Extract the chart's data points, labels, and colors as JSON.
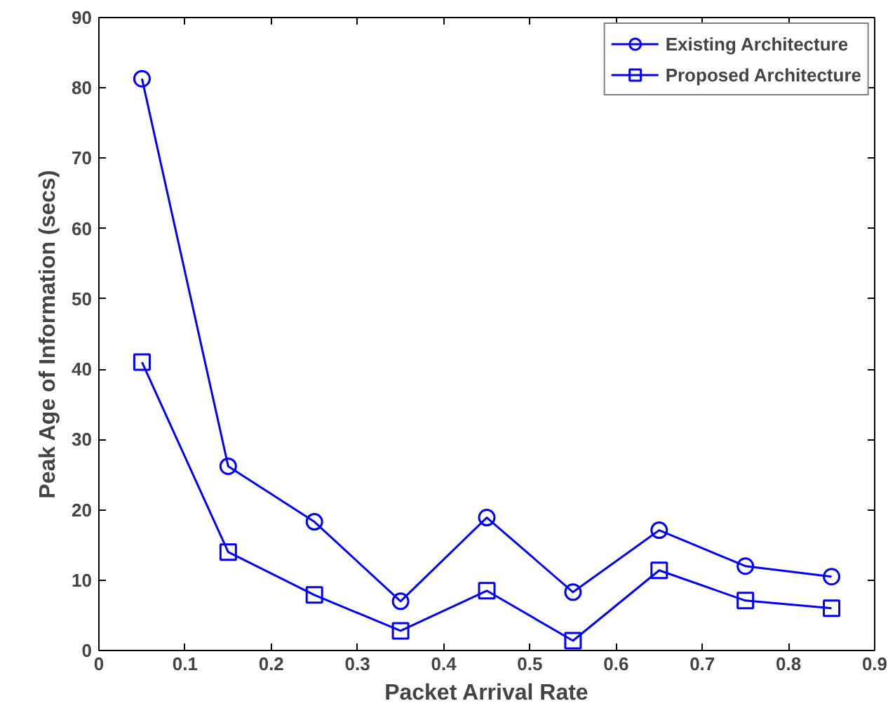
{
  "chart_data": {
    "type": "line",
    "xlabel": "Packet Arrival Rate",
    "ylabel": "Peak Age of Information (secs)",
    "x": [
      0.05,
      0.15,
      0.25,
      0.35,
      0.45,
      0.55,
      0.65,
      0.75,
      0.85
    ],
    "series": [
      {
        "name": "Existing Architecture",
        "color": "#0000ff",
        "marker": "circle",
        "values": [
          81.3,
          26.2,
          18.3,
          7.0,
          18.9,
          8.3,
          17.1,
          12.0,
          10.5
        ]
      },
      {
        "name": "Proposed Architecture",
        "color": "#0000ff",
        "marker": "square",
        "values": [
          41.0,
          14.0,
          7.9,
          2.8,
          8.5,
          1.4,
          11.4,
          7.1,
          6.0
        ]
      }
    ],
    "xlim": [
      0,
      0.9
    ],
    "xticks": [
      0,
      0.1,
      0.2,
      0.3,
      0.4,
      0.5,
      0.6,
      0.7,
      0.8,
      0.9
    ],
    "ylim": [
      0,
      90
    ],
    "yticks": [
      0,
      10,
      20,
      30,
      40,
      50,
      60,
      70,
      80,
      90
    ],
    "grid": false,
    "legend": "top right",
    "line_style": "solid"
  }
}
